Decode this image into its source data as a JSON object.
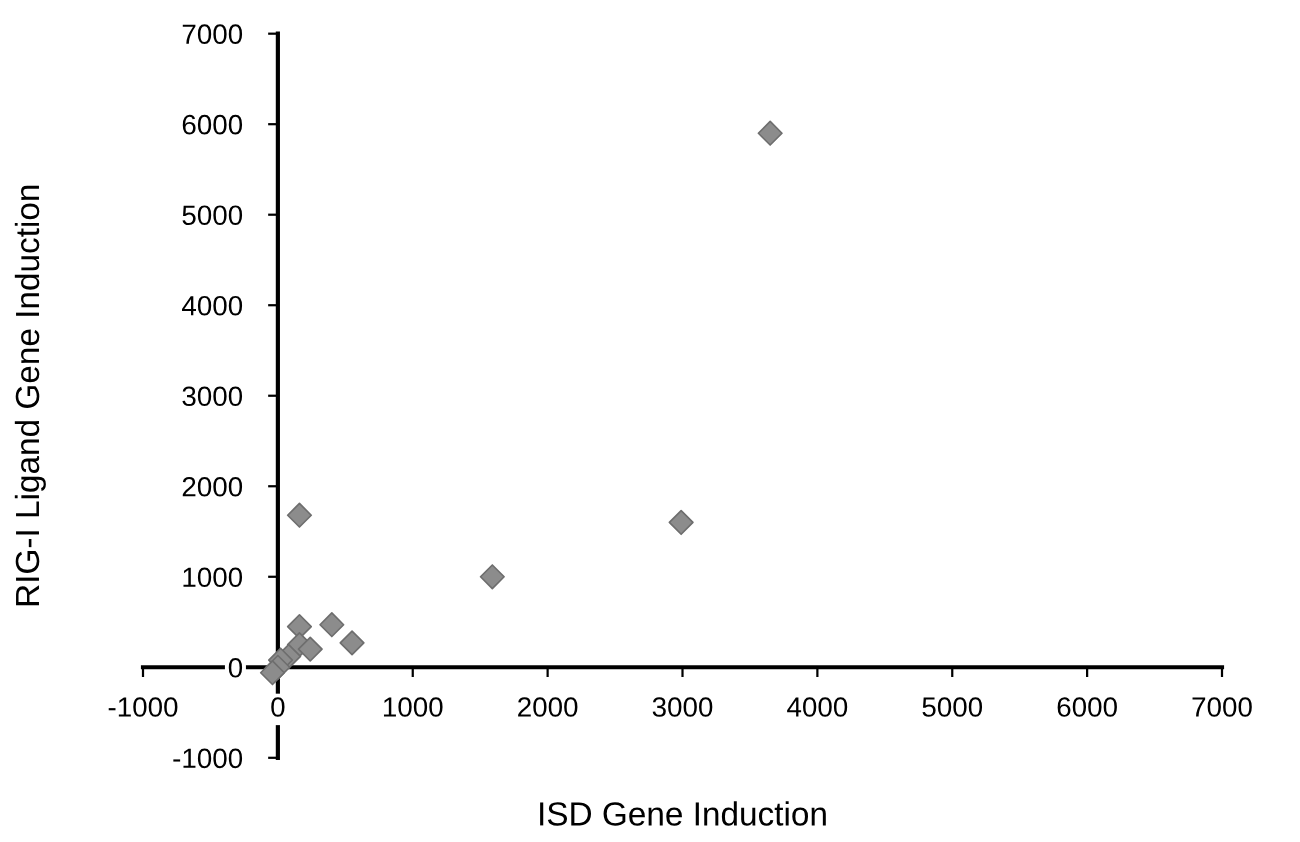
{
  "chart_data": {
    "type": "scatter",
    "xlabel": "ISD Gene Induction",
    "ylabel": "RIG-I Ligand Gene Induction",
    "x": [
      3650,
      2990,
      1590,
      160,
      160,
      400,
      550,
      160,
      240,
      80,
      20,
      0,
      -40
    ],
    "values": [
      5900,
      1600,
      1000,
      1680,
      450,
      470,
      270,
      250,
      200,
      120,
      80,
      0,
      -60
    ],
    "color": "#8c8c8c",
    "marker": "diamond",
    "grid": false,
    "legend": false,
    "xlim": [
      -1000,
      7000
    ],
    "xticks": [
      -1000,
      0,
      1000,
      2000,
      3000,
      4000,
      5000,
      6000,
      7000
    ],
    "ylim": [
      -1000,
      7000
    ],
    "yticks": [
      -1000,
      0,
      1000,
      2000,
      3000,
      4000,
      5000,
      6000,
      7000
    ]
  }
}
